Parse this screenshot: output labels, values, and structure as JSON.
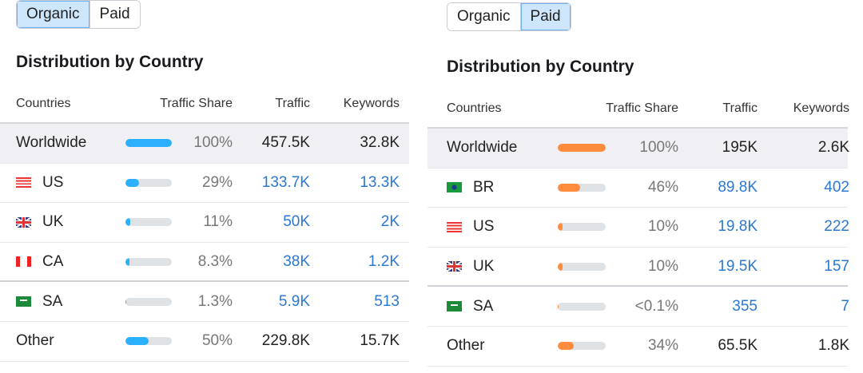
{
  "accent_colors": {
    "organic": "#2bb0fb",
    "paid": "#ff8b3d",
    "link": "#2a78d2"
  },
  "panels": [
    {
      "toggle": [
        {
          "label": "Organic",
          "active": true
        },
        {
          "label": "Paid",
          "active": false
        }
      ],
      "title": "Distribution by Country",
      "headers": [
        "Countries",
        "Traffic Share",
        "Traffic",
        "Keywords"
      ],
      "rows": [
        {
          "country": "Worldwide",
          "flag": null,
          "share_label": "100%",
          "share": 100,
          "traffic": "457.5K",
          "keywords": "32.8K",
          "total": true
        },
        {
          "country": "US",
          "flag": "us-flag-icon",
          "share_label": "29%",
          "share": 29,
          "traffic": "133.7K",
          "keywords": "13.3K",
          "link": true
        },
        {
          "country": "UK",
          "flag": "uk-flag-icon",
          "share_label": "11%",
          "share": 11,
          "traffic": "50K",
          "keywords": "2K",
          "link": true
        },
        {
          "country": "CA",
          "flag": "ca-flag-icon",
          "share_label": "8.3%",
          "share": 8.3,
          "traffic": "38K",
          "keywords": "1.2K",
          "link": true,
          "sep": true
        },
        {
          "country": "SA",
          "flag": "sa-flag-icon",
          "share_label": "1.3%",
          "share": 1.3,
          "traffic": "5.9K",
          "keywords": "513",
          "link": true
        },
        {
          "country": "Other",
          "flag": null,
          "share_label": "50%",
          "share": 50,
          "traffic": "229.8K",
          "keywords": "15.7K"
        }
      ]
    },
    {
      "toggle": [
        {
          "label": "Organic",
          "active": false
        },
        {
          "label": "Paid",
          "active": true
        }
      ],
      "title": "Distribution by Country",
      "headers": [
        "Countries",
        "Traffic Share",
        "Traffic",
        "Keywords"
      ],
      "rows": [
        {
          "country": "Worldwide",
          "flag": null,
          "share_label": "100%",
          "share": 100,
          "traffic": "195K",
          "keywords": "2.6K",
          "total": true
        },
        {
          "country": "BR",
          "flag": "br-flag-icon",
          "share_label": "46%",
          "share": 46,
          "traffic": "89.8K",
          "keywords": "402",
          "link": true
        },
        {
          "country": "US",
          "flag": "us-flag-icon",
          "share_label": "10%",
          "share": 10,
          "traffic": "19.8K",
          "keywords": "222",
          "link": true
        },
        {
          "country": "UK",
          "flag": "uk-flag-icon",
          "share_label": "10%",
          "share": 10,
          "traffic": "19.5K",
          "keywords": "157",
          "link": true,
          "sep": true
        },
        {
          "country": "SA",
          "flag": "sa-flag-icon",
          "share_label": "<0.1%",
          "share": 0.1,
          "traffic": "355",
          "keywords": "7",
          "link": true
        },
        {
          "country": "Other",
          "flag": null,
          "share_label": "34%",
          "share": 34,
          "traffic": "65.5K",
          "keywords": "1.8K"
        }
      ]
    }
  ]
}
